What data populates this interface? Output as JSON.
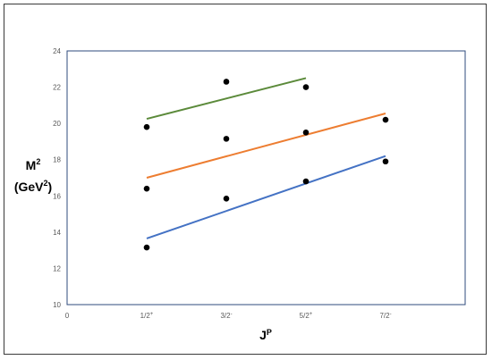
{
  "chart_data": {
    "type": "scatter",
    "title": "",
    "xlabel": {
      "base": "J",
      "sup": "P"
    },
    "ylabel": {
      "line1_base": "M",
      "line1_sup": "2",
      "line2_base": "(GeV",
      "line2_sup": "2",
      "line2_end": ")"
    },
    "x_ticks": [
      {
        "value": 0,
        "base": "0",
        "sup": ""
      },
      {
        "value": 1,
        "base": "1/2",
        "sup": "+"
      },
      {
        "value": 2,
        "base": "3/2",
        "sup": "-"
      },
      {
        "value": 3,
        "base": "5/2",
        "sup": "+"
      },
      {
        "value": 4,
        "base": "7/2",
        "sup": "-"
      }
    ],
    "xlim": [
      0,
      5
    ],
    "ylim": [
      10,
      24
    ],
    "y_ticks": [
      "10",
      "12",
      "14",
      "16",
      "18",
      "20",
      "22",
      "24"
    ],
    "grid": false,
    "legend": "none",
    "points": [
      {
        "x": 1,
        "y": 13.15
      },
      {
        "x": 1,
        "y": 16.4
      },
      {
        "x": 1,
        "y": 19.8
      },
      {
        "x": 2,
        "y": 15.85
      },
      {
        "x": 2,
        "y": 19.15
      },
      {
        "x": 2,
        "y": 22.3
      },
      {
        "x": 3,
        "y": 16.8
      },
      {
        "x": 3,
        "y": 19.5
      },
      {
        "x": 3,
        "y": 22.0
      },
      {
        "x": 4,
        "y": 17.9
      },
      {
        "x": 4,
        "y": 20.2
      }
    ],
    "trend_lines": [
      {
        "color": "#4472c4",
        "x": [
          1,
          4
        ],
        "y": [
          13.65,
          18.2
        ]
      },
      {
        "color": "#ed7d31",
        "x": [
          1,
          4
        ],
        "y": [
          17.0,
          20.55
        ]
      },
      {
        "color": "#5b8a3a",
        "x": [
          1,
          3
        ],
        "y": [
          20.25,
          22.5
        ]
      }
    ],
    "colors": {
      "axis": "#2f4b7c",
      "point": "#000000",
      "tick_text": "#595959"
    }
  }
}
